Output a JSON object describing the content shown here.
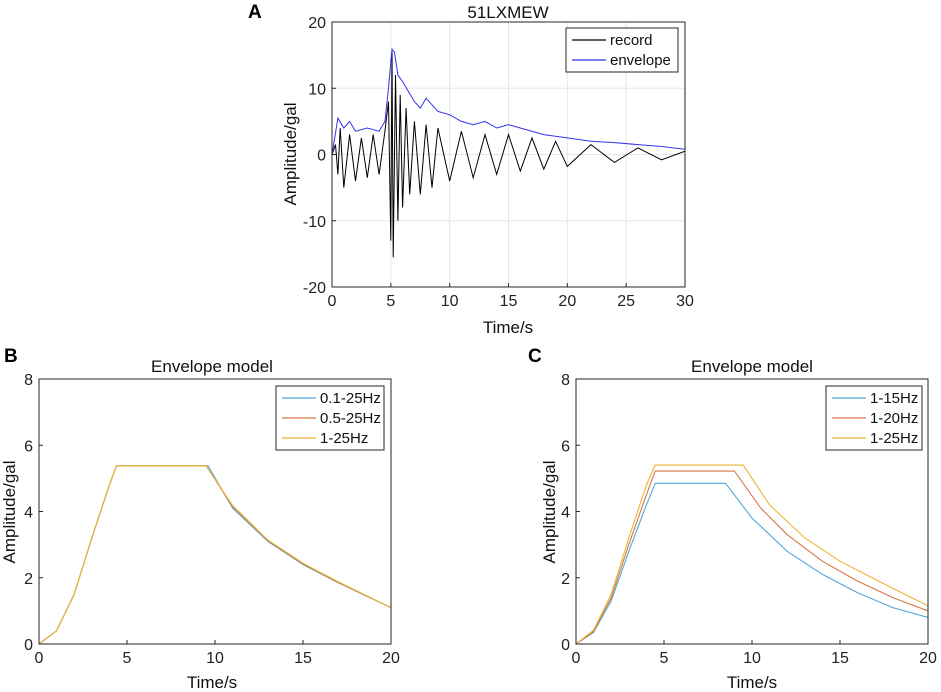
{
  "chart_data": [
    {
      "panel": "A",
      "type": "line",
      "title": "51LXMEW",
      "xlabel": "Time/s",
      "ylabel": "Amplitude/gal",
      "xlim": [
        0,
        30
      ],
      "ylim": [
        -20,
        20
      ],
      "xticks": [
        0,
        5,
        10,
        15,
        20,
        25,
        30
      ],
      "yticks": [
        -20,
        -10,
        0,
        10,
        20
      ],
      "grid": true,
      "legend_position": "top-right",
      "series": [
        {
          "name": "record",
          "color": "#000000",
          "x": [
            0,
            0.3,
            0.5,
            0.7,
            1.0,
            1.5,
            2.0,
            2.5,
            3.0,
            3.5,
            4.0,
            4.5,
            4.8,
            5.0,
            5.1,
            5.2,
            5.4,
            5.6,
            5.8,
            6.0,
            6.3,
            6.6,
            7.0,
            7.5,
            8.0,
            8.5,
            9.0,
            10.0,
            11.0,
            12.0,
            13.0,
            14.0,
            15.0,
            16.0,
            17.0,
            18.0,
            19.0,
            20.0,
            22.0,
            24.0,
            26.0,
            28.0,
            30.0
          ],
          "y": [
            0,
            1.5,
            -3,
            4,
            -5,
            3,
            -4,
            2.5,
            -3.5,
            3,
            -3,
            3.5,
            8,
            -13,
            16,
            -15.5,
            12,
            -10,
            9,
            -8,
            7,
            -6,
            5,
            -6,
            4.5,
            -5,
            4,
            -4,
            3.5,
            -3.5,
            3,
            -3,
            3,
            -2.5,
            2.5,
            -2.2,
            2,
            -1.8,
            1.5,
            -1.2,
            1,
            -0.8,
            0.5
          ]
        },
        {
          "name": "envelope",
          "color": "#3333ee",
          "x": [
            0,
            0.5,
            1.0,
            1.5,
            2.0,
            3.0,
            4.0,
            4.5,
            4.8,
            5.0,
            5.1,
            5.3,
            5.6,
            6.0,
            6.5,
            7.0,
            7.5,
            8.0,
            9.0,
            10.0,
            11.0,
            12.0,
            13.0,
            14.0,
            15.0,
            16.0,
            18.0,
            20.0,
            22.0,
            24.0,
            26.0,
            28.0,
            30.0
          ],
          "y": [
            0,
            5.5,
            4,
            5,
            3.5,
            4,
            3.5,
            5,
            10,
            14,
            15.8,
            15.5,
            12,
            11,
            9.5,
            8,
            7,
            8.5,
            6.5,
            6,
            5,
            4.5,
            5,
            4,
            4.5,
            4,
            3,
            2.5,
            2,
            1.8,
            1.5,
            1.2,
            0.8
          ]
        }
      ]
    },
    {
      "panel": "B",
      "type": "line",
      "title": "Envelope model",
      "xlabel": "Time/s",
      "ylabel": "Amplitude/gal",
      "xlim": [
        0,
        20
      ],
      "ylim": [
        0,
        8
      ],
      "xticks": [
        0,
        5,
        10,
        15,
        20
      ],
      "yticks": [
        0,
        2,
        4,
        6,
        8
      ],
      "grid": false,
      "legend_position": "top-right",
      "series": [
        {
          "name": "0.1-25Hz",
          "color": "#4ea8d8",
          "x": [
            0,
            1,
            2,
            3,
            4,
            4.4,
            9.6,
            11,
            13,
            15,
            17,
            20
          ],
          "y": [
            0,
            0.4,
            1.5,
            3.2,
            4.8,
            5.38,
            5.38,
            4.1,
            3.1,
            2.4,
            1.85,
            1.1
          ]
        },
        {
          "name": "0.5-25Hz",
          "color": "#d9764a",
          "x": [
            0,
            1,
            2,
            3,
            4,
            4.4,
            9.5,
            11,
            13,
            15,
            17,
            20
          ],
          "y": [
            0,
            0.4,
            1.5,
            3.2,
            4.8,
            5.38,
            5.38,
            4.15,
            3.12,
            2.42,
            1.86,
            1.1
          ]
        },
        {
          "name": "1-25Hz",
          "color": "#edb531",
          "x": [
            0,
            1,
            2,
            3,
            4,
            4.4,
            9.5,
            11,
            13,
            15,
            17,
            20
          ],
          "y": [
            0,
            0.4,
            1.5,
            3.2,
            4.8,
            5.38,
            5.38,
            4.18,
            3.14,
            2.44,
            1.88,
            1.1
          ]
        }
      ]
    },
    {
      "panel": "C",
      "type": "line",
      "title": "Envelope model",
      "xlabel": "Time/s",
      "ylabel": "Amplitude/gal",
      "xlim": [
        0,
        20
      ],
      "ylim": [
        0,
        8
      ],
      "xticks": [
        0,
        5,
        10,
        15,
        20
      ],
      "yticks": [
        0,
        2,
        4,
        6,
        8
      ],
      "grid": false,
      "legend_position": "top-right",
      "series": [
        {
          "name": "1-15Hz",
          "color": "#4ea8d8",
          "x": [
            0,
            1,
            2,
            3,
            4,
            4.5,
            8.5,
            10,
            12,
            14,
            16,
            18,
            20
          ],
          "y": [
            0,
            0.35,
            1.3,
            2.8,
            4.2,
            4.85,
            4.85,
            3.8,
            2.8,
            2.1,
            1.55,
            1.1,
            0.8
          ]
        },
        {
          "name": "1-20Hz",
          "color": "#d9764a",
          "x": [
            0,
            1,
            2,
            3,
            4,
            4.5,
            9.0,
            10.5,
            12,
            14,
            16,
            18,
            20
          ],
          "y": [
            0,
            0.38,
            1.4,
            3.0,
            4.5,
            5.22,
            5.22,
            4.1,
            3.3,
            2.5,
            1.9,
            1.4,
            1.0
          ]
        },
        {
          "name": "1-25Hz",
          "color": "#edb531",
          "x": [
            0,
            1,
            2,
            3,
            4,
            4.5,
            9.5,
            11,
            13,
            15,
            17,
            20
          ],
          "y": [
            0,
            0.42,
            1.5,
            3.2,
            4.8,
            5.4,
            5.4,
            4.2,
            3.2,
            2.5,
            1.95,
            1.15
          ]
        }
      ]
    }
  ],
  "panel_labels": {
    "a": "A",
    "b": "B",
    "c": "C"
  }
}
